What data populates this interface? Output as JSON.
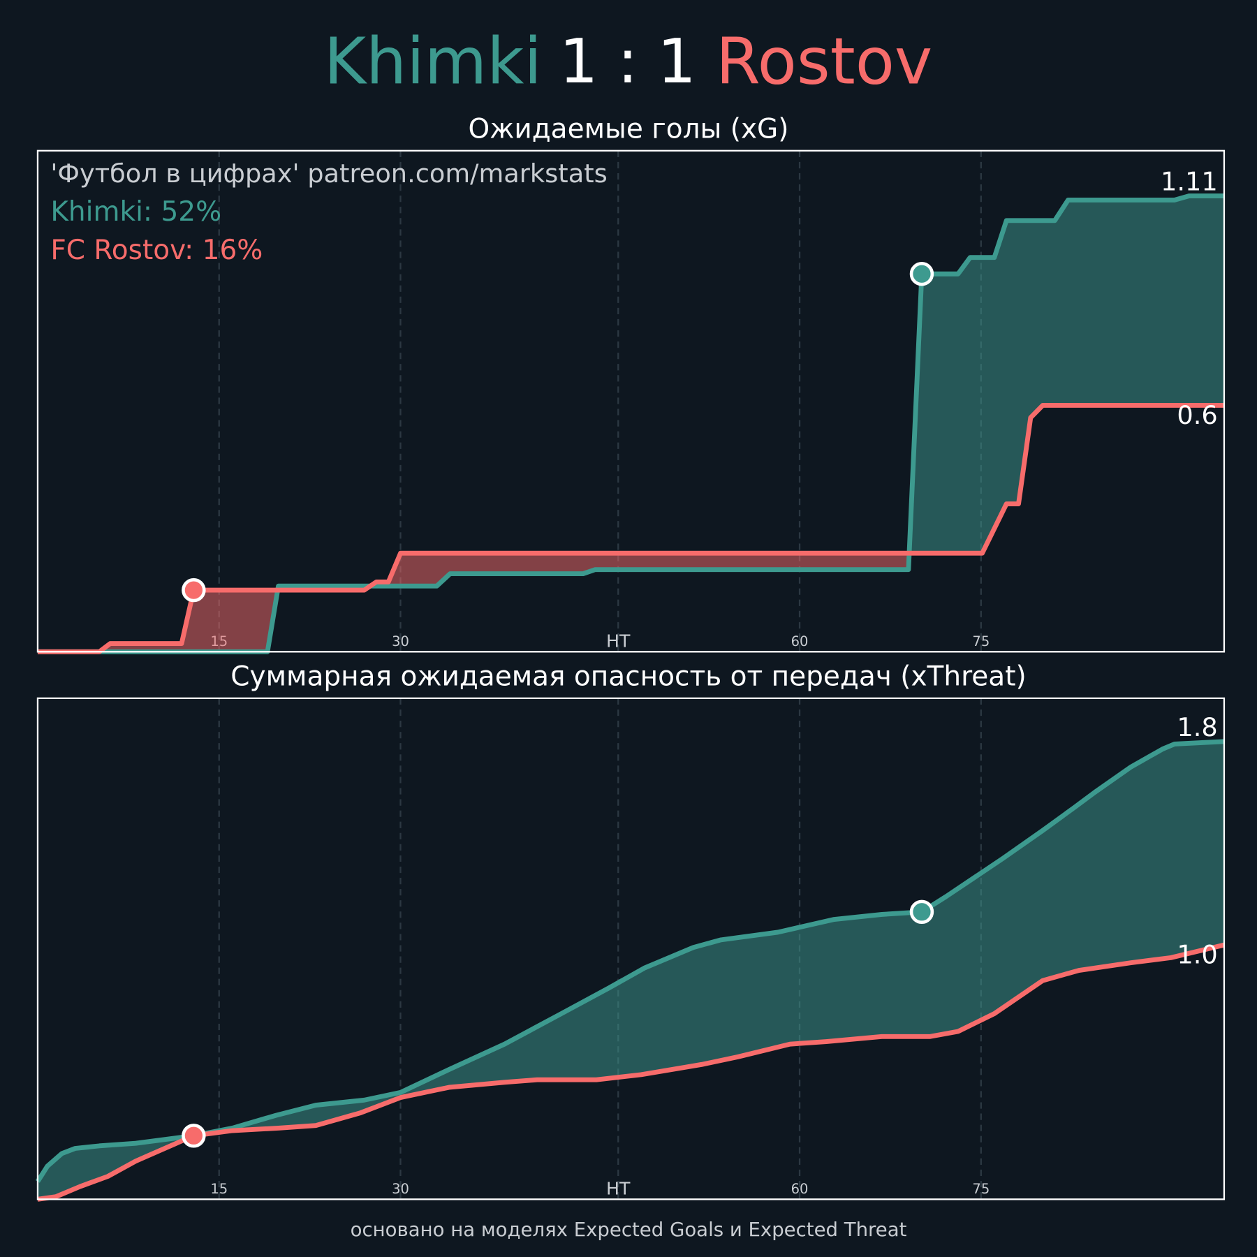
{
  "header": {
    "home": "Khimki",
    "score": "1 : 1",
    "away": "Rostov",
    "home_color": "#3d9a8f",
    "away_color": "#f76c6b"
  },
  "footer": "основано на моделях Expected Goals и Expected Threat",
  "chart_data": [
    {
      "type": "line",
      "title": "Ожидаемые голы (xG)",
      "annotations": [
        {
          "text": "'Футбол в цифрах' patreon.com/markstats",
          "color": "#c9cdd2"
        },
        {
          "text": "Khimki: 52%",
          "color": "#3d9a8f"
        },
        {
          "text": "FC Rostov: 16%",
          "color": "#f76c6b"
        }
      ],
      "xlim": [
        0,
        98.1
      ],
      "ylim": [
        0,
        1.22
      ],
      "xticks": [
        15,
        30,
        {
          "value": 48,
          "label": "HT"
        },
        {
          "value": 63,
          "label": "60"
        },
        {
          "value": 78,
          "label": "75"
        }
      ],
      "grid": true,
      "series": [
        {
          "name": "Khimki",
          "color": "#3d9a8f",
          "end_label": "1.11",
          "x": [
            0,
            19.0,
            19.9,
            28,
            33,
            34.1,
            45.1,
            46.1,
            72,
            73.1,
            76.1,
            77.1,
            79.1,
            80.1,
            84.1,
            85.2,
            94,
            95.2,
            98.1
          ],
          "values": [
            0,
            0,
            0.16,
            0.16,
            0.16,
            0.19,
            0.19,
            0.2,
            0.2,
            0.92,
            0.92,
            0.96,
            0.96,
            1.05,
            1.05,
            1.1,
            1.1,
            1.11,
            1.11
          ],
          "goals": [
            {
              "x": 73.1,
              "y": 0.92
            }
          ]
        },
        {
          "name": "Rostov",
          "color": "#f76c6b",
          "end_label": "0.6",
          "x": [
            0,
            5.1,
            6,
            11.9,
            12.9,
            27,
            28,
            29,
            30,
            78.1,
            80.1,
            81.1,
            82.1,
            83.1,
            98.1
          ],
          "values": [
            0,
            0,
            0.02,
            0.02,
            0.15,
            0.15,
            0.17,
            0.17,
            0.24,
            0.24,
            0.36,
            0.36,
            0.57,
            0.6,
            0.6
          ],
          "goals": [
            {
              "x": 12.9,
              "y": 0.15
            }
          ]
        }
      ]
    },
    {
      "type": "line",
      "title": "Суммарная ожидаемая опасность от передач (xThreat)",
      "xlim": [
        0,
        98.1
      ],
      "ylim": [
        0,
        1.97
      ],
      "xticks": [
        15,
        30,
        {
          "value": 48,
          "label": "HT"
        },
        {
          "value": 63,
          "label": "60"
        },
        {
          "value": 78,
          "label": "75"
        }
      ],
      "grid": true,
      "series": [
        {
          "name": "Khimki",
          "color": "#3d9a8f",
          "end_label": "1.8",
          "x": [
            0,
            0.8,
            2,
            3.1,
            5.1,
            8.1,
            12.9,
            16.1,
            19.7,
            23,
            27,
            30,
            34,
            38.6,
            43.3,
            47.2,
            50.2,
            54.2,
            56.5,
            61.2,
            65.8,
            69.8,
            73.1,
            75.1,
            79.8,
            83.1,
            85.7,
            87.4,
            90.4,
            93,
            94,
            98.1
          ],
          "values": [
            0.07,
            0.13,
            0.18,
            0.2,
            0.21,
            0.22,
            0.25,
            0.28,
            0.33,
            0.37,
            0.39,
            0.42,
            0.51,
            0.61,
            0.73,
            0.83,
            0.91,
            0.99,
            1.02,
            1.05,
            1.1,
            1.12,
            1.13,
            1.19,
            1.34,
            1.45,
            1.54,
            1.6,
            1.7,
            1.77,
            1.79,
            1.8
          ],
          "goals": [
            {
              "x": 73.1,
              "y": 1.13
            }
          ]
        },
        {
          "name": "Rostov",
          "color": "#f76c6b",
          "end_label": "1.0",
          "x": [
            0,
            1.5,
            3.5,
            5.8,
            8.1,
            12.9,
            16.1,
            20,
            23,
            26.7,
            30,
            34,
            38.6,
            41.3,
            46.2,
            49.9,
            54.9,
            57.9,
            62.2,
            65.2,
            69.8,
            73.8,
            76.1,
            79.1,
            83.1,
            86.1,
            90.4,
            93.7,
            98.1
          ],
          "values": [
            0,
            0.01,
            0.05,
            0.09,
            0.15,
            0.25,
            0.27,
            0.28,
            0.29,
            0.34,
            0.4,
            0.44,
            0.46,
            0.47,
            0.47,
            0.49,
            0.53,
            0.56,
            0.61,
            0.62,
            0.64,
            0.64,
            0.66,
            0.73,
            0.86,
            0.9,
            0.93,
            0.95,
            1.0
          ],
          "goals": [
            {
              "x": 12.9,
              "y": 0.25
            }
          ]
        }
      ]
    }
  ]
}
